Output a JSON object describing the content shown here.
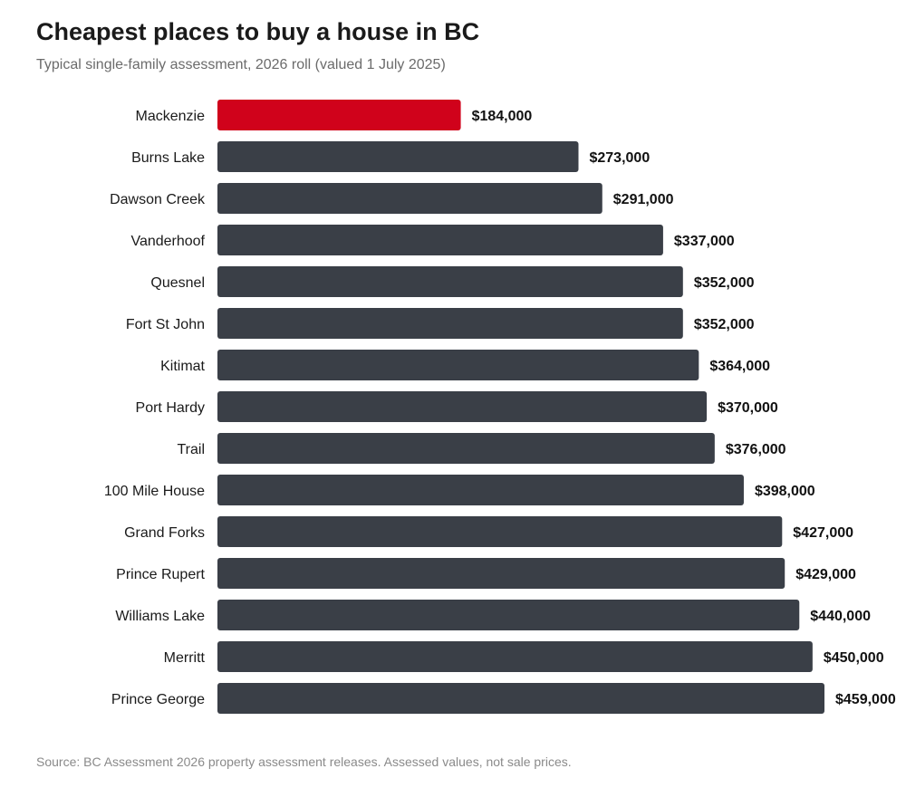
{
  "header": {
    "title": "Cheapest places to buy a house in BC",
    "subtitle": "Typical single-family assessment, 2026 roll (valued 1 July 2025)"
  },
  "footer": {
    "source": "Source: BC Assessment 2026 property assessment releases. Assessed values, not sale prices."
  },
  "colors": {
    "highlight": "#d0021b",
    "bar": "#3a3f47",
    "label": "#1a1a1a",
    "value_label": "#111111"
  },
  "chart_data": {
    "type": "bar",
    "orientation": "horizontal",
    "title": "Cheapest places to buy a house in BC",
    "subtitle": "Typical single-family assessment, 2026 roll (valued 1 July 2025)",
    "xlabel": "",
    "ylabel": "",
    "xlim": [
      0,
      475000
    ],
    "grid": false,
    "legend": "none",
    "highlight_index": 0,
    "categories": [
      "Mackenzie",
      "Burns Lake",
      "Dawson Creek",
      "Vanderhoof",
      "Quesnel",
      "Fort St John",
      "Kitimat",
      "Port Hardy",
      "Trail",
      "100 Mile House",
      "Grand Forks",
      "Prince Rupert",
      "Williams Lake",
      "Merritt",
      "Prince George"
    ],
    "values": [
      184000,
      273000,
      291000,
      337000,
      352000,
      352000,
      364000,
      370000,
      376000,
      398000,
      427000,
      429000,
      440000,
      450000,
      459000
    ],
    "value_labels": [
      "$184,000",
      "$273,000",
      "$291,000",
      "$337,000",
      "$352,000",
      "$352,000",
      "$364,000",
      "$370,000",
      "$376,000",
      "$398,000",
      "$427,000",
      "$429,000",
      "$440,000",
      "$450,000",
      "$459,000"
    ]
  }
}
